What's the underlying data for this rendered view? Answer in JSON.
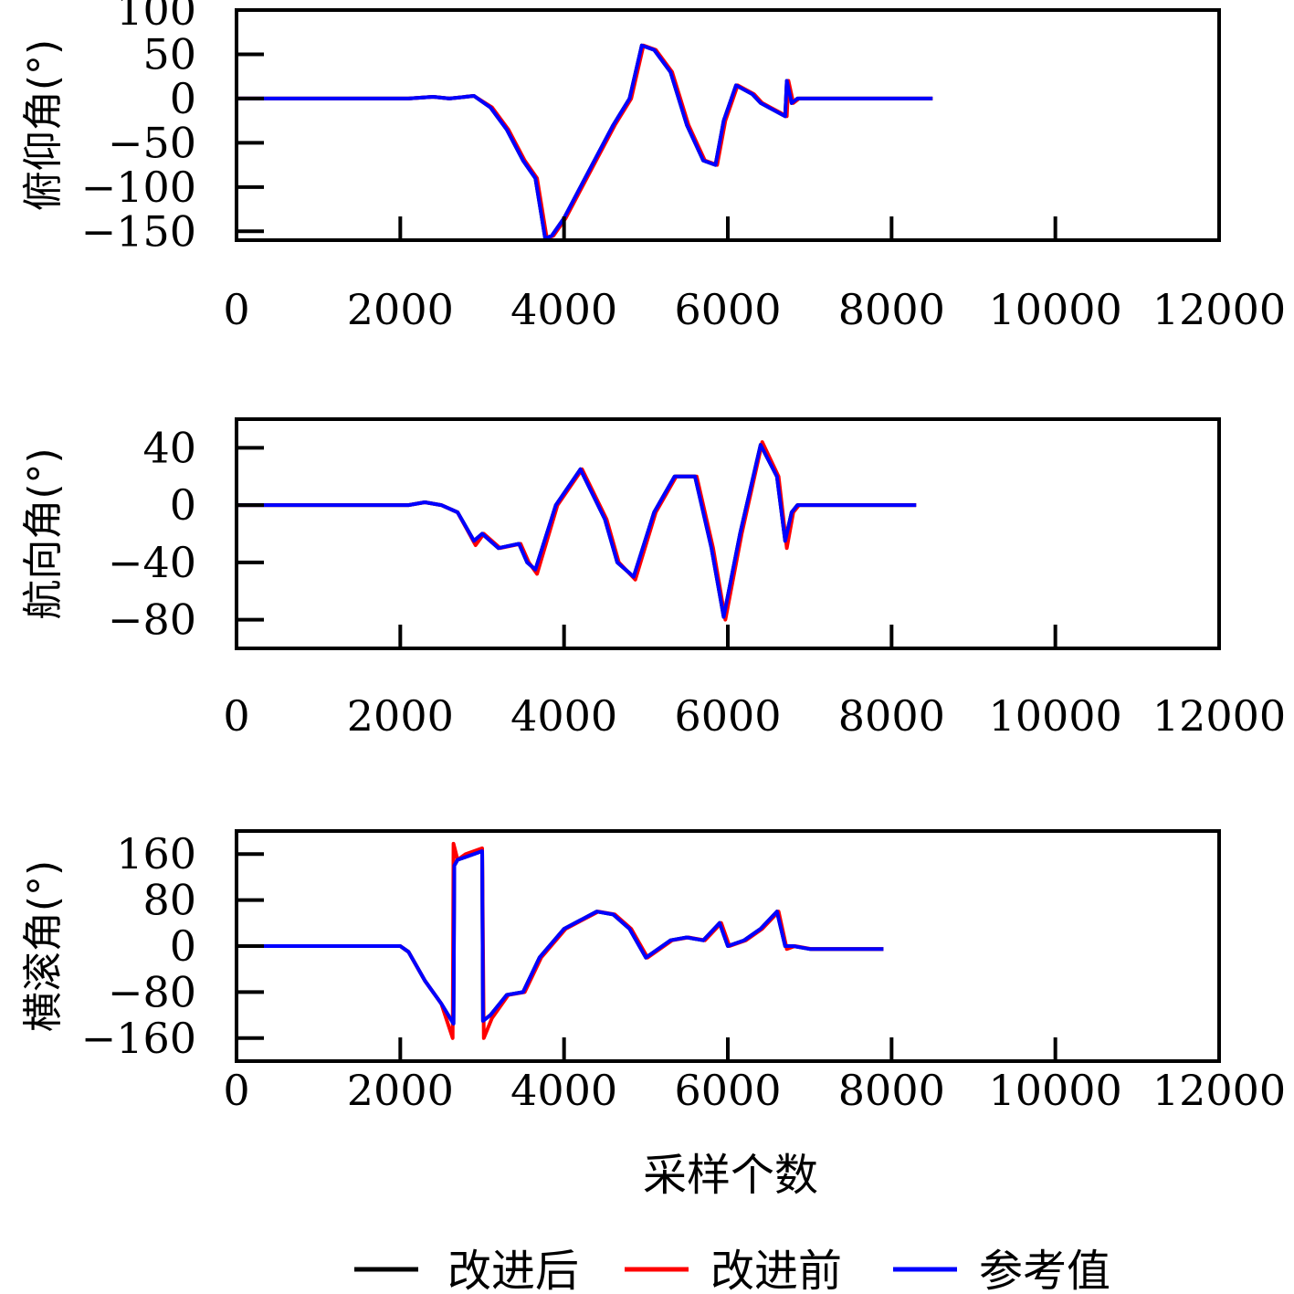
{
  "xlabel": "采样个数",
  "legend": [
    {
      "label": "改进后",
      "color": "#000000"
    },
    {
      "label": "改进前",
      "color": "#ff0000"
    },
    {
      "label": "参考值",
      "color": "#0000ff"
    }
  ],
  "chart_data": [
    {
      "type": "line",
      "ylabel": "俯仰角(°)",
      "xlim": [
        0,
        12000
      ],
      "ylim": [
        -160,
        100
      ],
      "xticks": [
        0,
        2000,
        4000,
        6000,
        8000,
        10000,
        12000
      ],
      "yticks": [
        100,
        50,
        0,
        -50,
        -100,
        -150
      ],
      "grid": false,
      "series": [
        {
          "name": "改进后",
          "color": "#000000",
          "x": [
            0,
            2100,
            2400,
            2600,
            2900,
            3100,
            3300,
            3500,
            3650,
            3720,
            3770,
            3850,
            4000,
            4200,
            4400,
            4600,
            4800,
            4950,
            5100,
            5300,
            5500,
            5700,
            5850,
            5950,
            6100,
            6300,
            6400,
            6500,
            6700,
            6720,
            6780,
            6850,
            7000,
            8500
          ],
          "y": [
            0,
            0,
            2,
            0,
            3,
            -10,
            -35,
            -70,
            -90,
            -130,
            -158,
            -155,
            -135,
            -100,
            -65,
            -30,
            0,
            60,
            55,
            30,
            -30,
            -70,
            -75,
            -25,
            15,
            5,
            -5,
            -10,
            -20,
            20,
            -5,
            0,
            0,
            0
          ]
        },
        {
          "name": "改进前",
          "color": "#ff0000",
          "x": [
            0,
            2100,
            2400,
            2600,
            2900,
            3120,
            3320,
            3520,
            3670,
            3740,
            3790,
            3870,
            4020,
            4220,
            4420,
            4620,
            4820,
            4970,
            5120,
            5320,
            5520,
            5720,
            5870,
            5970,
            6120,
            6320,
            6420,
            6520,
            6720,
            6740,
            6800,
            6870,
            7020,
            8500
          ],
          "y": [
            0,
            0,
            2,
            0,
            3,
            -10,
            -35,
            -70,
            -90,
            -130,
            -158,
            -155,
            -135,
            -100,
            -65,
            -30,
            0,
            60,
            55,
            30,
            -30,
            -70,
            -75,
            -25,
            15,
            5,
            -5,
            -10,
            -20,
            20,
            -5,
            0,
            0,
            0
          ]
        },
        {
          "name": "参考值",
          "color": "#0000ff",
          "x": [
            0,
            2100,
            2400,
            2600,
            2900,
            3100,
            3300,
            3500,
            3650,
            3720,
            3770,
            3850,
            4000,
            4200,
            4400,
            4600,
            4800,
            4950,
            5100,
            5300,
            5500,
            5700,
            5850,
            5950,
            6100,
            6300,
            6400,
            6500,
            6700,
            6720,
            6780,
            6850,
            7000,
            8500
          ],
          "y": [
            0,
            0,
            2,
            0,
            3,
            -10,
            -35,
            -70,
            -90,
            -130,
            -158,
            -155,
            -135,
            -100,
            -65,
            -30,
            0,
            60,
            55,
            30,
            -30,
            -70,
            -75,
            -25,
            15,
            5,
            -5,
            -10,
            -20,
            20,
            -5,
            0,
            0,
            0
          ]
        }
      ]
    },
    {
      "type": "line",
      "ylabel": "航向角(°)",
      "xlim": [
        0,
        12000
      ],
      "ylim": [
        -100,
        60
      ],
      "xticks": [
        0,
        2000,
        4000,
        6000,
        8000,
        10000,
        12000
      ],
      "yticks": [
        40,
        0,
        -40,
        -80
      ],
      "grid": false,
      "series": [
        {
          "name": "改进后",
          "color": "#000000",
          "x": [
            0,
            2100,
            2300,
            2500,
            2700,
            2900,
            3000,
            3200,
            3450,
            3550,
            3650,
            3900,
            4200,
            4500,
            4650,
            4850,
            5100,
            5350,
            5600,
            5800,
            5950,
            6150,
            6400,
            6600,
            6700,
            6780,
            6850,
            7000,
            8300
          ],
          "y": [
            0,
            0,
            2,
            0,
            -5,
            -25,
            -20,
            -30,
            -27,
            -40,
            -45,
            0,
            25,
            -10,
            -40,
            -50,
            -5,
            20,
            20,
            -30,
            -78,
            -20,
            42,
            20,
            -25,
            -5,
            0,
            0,
            0
          ]
        },
        {
          "name": "改进前",
          "color": "#ff0000",
          "x": [
            0,
            2100,
            2300,
            2500,
            2700,
            2920,
            3020,
            3220,
            3470,
            3570,
            3670,
            3920,
            4220,
            4520,
            4670,
            4870,
            5120,
            5370,
            5620,
            5820,
            5970,
            6170,
            6420,
            6620,
            6720,
            6800,
            6870,
            7020,
            8300
          ],
          "y": [
            0,
            0,
            2,
            0,
            -5,
            -28,
            -20,
            -30,
            -27,
            -40,
            -48,
            0,
            25,
            -10,
            -40,
            -52,
            -5,
            20,
            20,
            -30,
            -80,
            -20,
            44,
            20,
            -30,
            -5,
            0,
            0,
            0
          ]
        },
        {
          "name": "参考值",
          "color": "#0000ff",
          "x": [
            0,
            2100,
            2300,
            2500,
            2700,
            2900,
            3000,
            3200,
            3450,
            3550,
            3650,
            3900,
            4200,
            4500,
            4650,
            4850,
            5100,
            5350,
            5600,
            5800,
            5950,
            6150,
            6400,
            6600,
            6700,
            6780,
            6850,
            7000,
            8300
          ],
          "y": [
            0,
            0,
            2,
            0,
            -5,
            -25,
            -20,
            -30,
            -27,
            -40,
            -45,
            0,
            25,
            -10,
            -40,
            -50,
            -5,
            20,
            20,
            -30,
            -78,
            -20,
            42,
            20,
            -25,
            -5,
            0,
            0,
            0
          ]
        }
      ]
    },
    {
      "type": "line",
      "ylabel": "横滚角(°)",
      "xlim": [
        0,
        12000
      ],
      "ylim": [
        -200,
        200
      ],
      "xticks": [
        0,
        2000,
        4000,
        6000,
        8000,
        10000,
        12000
      ],
      "yticks": [
        160,
        80,
        0,
        -80,
        -160
      ],
      "grid": false,
      "series": [
        {
          "name": "改进后",
          "color": "#000000",
          "x": [
            0,
            2000,
            2100,
            2300,
            2500,
            2650,
            2660,
            2700,
            2800,
            3000,
            3010,
            3100,
            3300,
            3500,
            3700,
            4000,
            4400,
            4600,
            4800,
            5000,
            5300,
            5500,
            5700,
            5900,
            6000,
            6200,
            6400,
            6600,
            6700,
            6800,
            7000,
            7900
          ],
          "y": [
            0,
            0,
            -10,
            -60,
            -100,
            -135,
            140,
            150,
            155,
            165,
            -130,
            -120,
            -85,
            -80,
            -20,
            30,
            60,
            55,
            30,
            -20,
            10,
            15,
            10,
            40,
            0,
            10,
            30,
            60,
            0,
            0,
            -5,
            -5
          ]
        },
        {
          "name": "改进前",
          "color": "#ff0000",
          "x": [
            0,
            2000,
            2100,
            2300,
            2500,
            2640,
            2650,
            2700,
            2800,
            3000,
            3020,
            3120,
            3320,
            3520,
            3720,
            4020,
            4420,
            4620,
            4820,
            5020,
            5320,
            5520,
            5720,
            5920,
            6020,
            6220,
            6420,
            6620,
            6720,
            6820,
            7020,
            7900
          ],
          "y": [
            0,
            0,
            -10,
            -60,
            -100,
            -160,
            178,
            150,
            160,
            170,
            -160,
            -125,
            -85,
            -80,
            -20,
            30,
            60,
            55,
            30,
            -20,
            10,
            15,
            10,
            40,
            0,
            10,
            30,
            60,
            -5,
            0,
            -5,
            -5
          ]
        },
        {
          "name": "参考值",
          "color": "#0000ff",
          "x": [
            0,
            2000,
            2100,
            2300,
            2500,
            2650,
            2660,
            2700,
            2800,
            3000,
            3010,
            3100,
            3300,
            3500,
            3700,
            4000,
            4400,
            4600,
            4800,
            5000,
            5300,
            5500,
            5700,
            5900,
            6000,
            6200,
            6400,
            6600,
            6700,
            6800,
            7000,
            7900
          ],
          "y": [
            0,
            0,
            -10,
            -60,
            -100,
            -135,
            140,
            150,
            155,
            165,
            -130,
            -120,
            -85,
            -80,
            -20,
            30,
            60,
            55,
            30,
            -20,
            10,
            15,
            10,
            40,
            0,
            10,
            30,
            60,
            0,
            0,
            -5,
            -5
          ]
        }
      ]
    }
  ]
}
